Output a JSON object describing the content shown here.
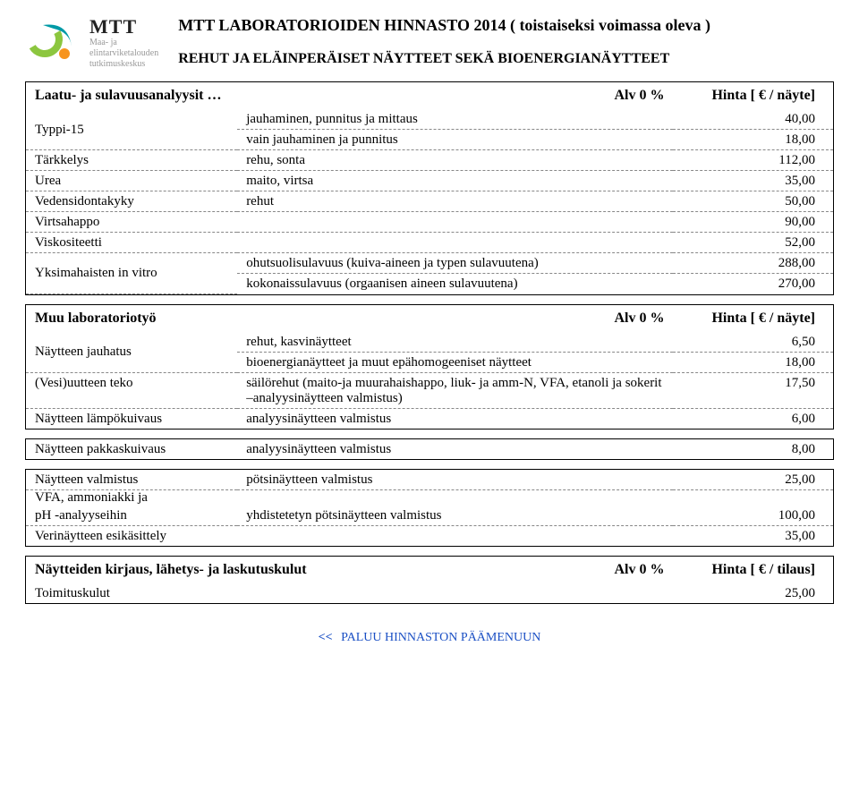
{
  "logo": {
    "main": "MTT",
    "sub1": "Maa- ja",
    "sub2": "elintarviketalouden",
    "sub3": "tutkimuskeskus"
  },
  "colors": {
    "logoGreen": "#8cc63f",
    "logoTeal": "#009aa6",
    "logoOrange": "#f7941d",
    "link": "#1a4fc4"
  },
  "title": "MTT LABORATORIOIDEN HINNASTO 2014  ( toistaiseksi voimassa oleva )",
  "subtitle": "REHUT JA ELÄINPERÄISET NÄYTTEET SEKÄ BIOENERGIANÄYTTEET",
  "section1": {
    "heading_left": "Laatu- ja sulavuusanalyysit …",
    "heading_mid": "Alv 0 %",
    "heading_right": "Hinta [ € / näyte]",
    "rows": [
      {
        "c0": "Typpi-15",
        "c1": "jauhaminen, punnitus ja mittaus",
        "c2": "40,00",
        "dash": true,
        "span": true
      },
      {
        "c0": "",
        "c1": "vain jauhaminen ja punnitus",
        "c2": "18,00",
        "dash": true
      },
      {
        "c0": "Tärkkelys",
        "c1": "rehu, sonta",
        "c2": "112,00",
        "dash": true
      },
      {
        "c0": "Urea",
        "c1": "maito, virtsa",
        "c2": "35,00",
        "dash": true
      },
      {
        "c0": "Vedensidontakyky",
        "c1": "rehut",
        "c2": "50,00",
        "dash": true
      },
      {
        "c0": "Virtsahappo",
        "c1": "",
        "c2": "90,00",
        "dash": true
      },
      {
        "c0": "Viskositeetti",
        "c1": "",
        "c2": "52,00",
        "dash": true
      },
      {
        "c0": "Yksimahaisten in vitro",
        "c1": "ohutsuolisulavuus  (kuiva-aineen ja typen sulavuutena)",
        "c2": "288,00",
        "dash": true,
        "span": true
      },
      {
        "c0": "",
        "c1": "kokonaissulavuus  (orgaanisen aineen sulavuutena)",
        "c2": "270,00",
        "dash": false
      }
    ]
  },
  "section2": {
    "heading_left": "Muu laboratoriotyö",
    "heading_mid": "Alv 0 %",
    "heading_right": "Hinta [ € / näyte]",
    "rows": [
      {
        "c0": "Näytteen jauhatus",
        "c1": "rehut, kasvinäytteet",
        "c2": "6,50",
        "dash": true,
        "span": true
      },
      {
        "c0": "",
        "c1": "bioenergianäytteet ja muut epähomogeeniset näytteet",
        "c2": "18,00",
        "dash": true
      },
      {
        "c0": "(Vesi)uutteen teko",
        "c1": "säilörehut  (maito-ja muurahaishappo, liuk- ja amm-N, VFA, etanoli ja sokerit –analyysinäytteen valmistus)",
        "c2": "17,50",
        "dash": true
      },
      {
        "c0": "Näytteen lämpökuivaus",
        "c1": "analyysinäytteen valmistus",
        "c2": "6,00",
        "dash": false
      }
    ]
  },
  "section3": {
    "rows": [
      {
        "c0": "Näytteen pakkaskuivaus",
        "c1": "analyysinäytteen valmistus",
        "c2": "8,00",
        "dash": false
      }
    ]
  },
  "section4": {
    "rows": [
      {
        "c0": "Näytteen valmistus",
        "c1": "pötsinäytteen valmistus",
        "c2": "25,00",
        "dash": true,
        "span": true
      },
      {
        "c0": "VFA, ammoniakki ja",
        "c1": "",
        "c2": "",
        "nopad": true,
        "span": true
      },
      {
        "c0": "pH -analyyseihin",
        "c1": "yhdistetetyn pötsinäytteen valmistus",
        "c2": "100,00",
        "dash": true
      },
      {
        "c0": "Verinäytteen esikäsittely",
        "c1": "",
        "c2": "35,00",
        "dash": false
      }
    ]
  },
  "section5": {
    "heading_left": "Näytteiden kirjaus, lähetys- ja laskutuskulut",
    "heading_mid": "Alv 0 %",
    "heading_right": "Hinta [ € / tilaus]",
    "rows": [
      {
        "c0": "Toimituskulut",
        "c1": "",
        "c2": "25,00",
        "dash": false
      }
    ]
  },
  "footer": {
    "arrows": "<<",
    "text": "PALUU HINNASTON PÄÄMENUUN"
  }
}
